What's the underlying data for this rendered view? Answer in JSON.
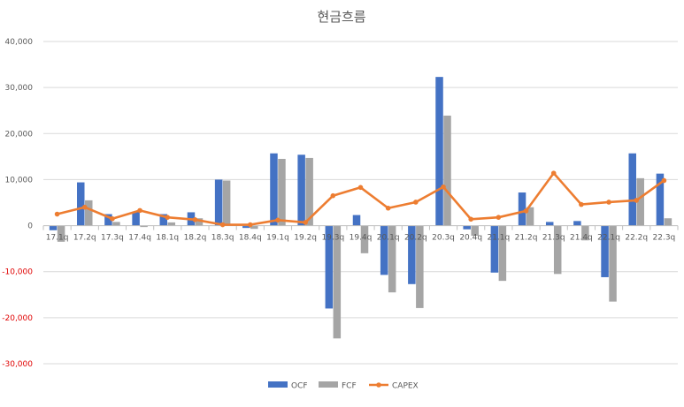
{
  "chart_data": {
    "type": "bar",
    "title": "현금흐름",
    "xlabel": "",
    "ylabel": "",
    "ylim": [
      -40000,
      40000
    ],
    "yticks": [
      "40,000",
      "30,000",
      "20,000",
      "10,000",
      "0",
      "-10,000",
      "-20,000",
      "-30,000"
    ],
    "ytick_values": [
      40000,
      30000,
      20000,
      10000,
      0,
      -10000,
      -20000,
      -30000
    ],
    "grid": true,
    "legend_position": "bottom",
    "categories": [
      "17.1q",
      "17.2q",
      "17.3q",
      "17.4q",
      "18.1q",
      "18.2q",
      "18.3q",
      "18.4q",
      "19.1q",
      "19.2q",
      "19.3q",
      "19.4q",
      "20.1q",
      "20.2q",
      "20.3q",
      "20.4q",
      "21.1q",
      "21.2q",
      "21.3q",
      "21.4q",
      "22.1q",
      "22.2q",
      "22.3q"
    ],
    "series": [
      {
        "name": "OCF",
        "type": "bar",
        "color": "#4472c4",
        "values": [
          -1000,
          9400,
          2500,
          3000,
          2500,
          2900,
          10000,
          -500,
          15700,
          15400,
          -18000,
          2300,
          -10700,
          -12700,
          32300,
          -800,
          -10200,
          7200,
          800,
          1000,
          -11200,
          15700,
          11300
        ]
      },
      {
        "name": "FCF",
        "type": "bar",
        "color": "#a5a5a5",
        "values": [
          -3500,
          5500,
          800,
          -300,
          700,
          1600,
          9800,
          -700,
          14500,
          14700,
          -24500,
          -6000,
          -14500,
          -17900,
          23900,
          -2200,
          -12000,
          4000,
          -10500,
          -3200,
          -16500,
          10300,
          1600
        ]
      },
      {
        "name": "CAPEX",
        "type": "line",
        "color": "#ed7d31",
        "values": [
          2500,
          4000,
          1500,
          3300,
          1800,
          1300,
          200,
          200,
          1200,
          700,
          6500,
          8300,
          3800,
          5100,
          8400,
          1400,
          1800,
          3200,
          11400,
          4600,
          5100,
          5500,
          9800
        ]
      }
    ]
  }
}
